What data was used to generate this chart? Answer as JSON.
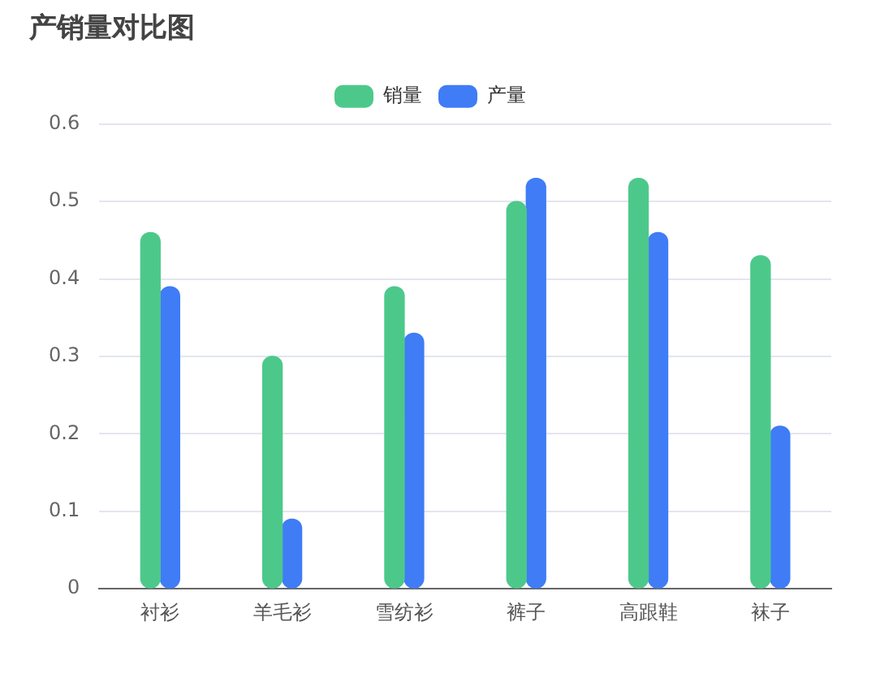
{
  "chart_data": {
    "type": "bar",
    "title": "产销量对比图",
    "categories": [
      "衬衫",
      "羊毛衫",
      "雪纺衫",
      "裤子",
      "高跟鞋",
      "袜子"
    ],
    "series": [
      {
        "name": "销量",
        "color": "#4cc98a",
        "values": [
          0.46,
          0.3,
          0.39,
          0.5,
          0.53,
          0.43
        ]
      },
      {
        "name": "产量",
        "color": "#3f7cf6",
        "values": [
          0.39,
          0.09,
          0.33,
          0.53,
          0.46,
          0.21
        ]
      }
    ],
    "ylim": [
      0,
      0.6
    ],
    "yticks": [
      0,
      0.1,
      0.2,
      0.3,
      0.4,
      0.5,
      0.6
    ],
    "grid": "y",
    "legend": "top"
  }
}
